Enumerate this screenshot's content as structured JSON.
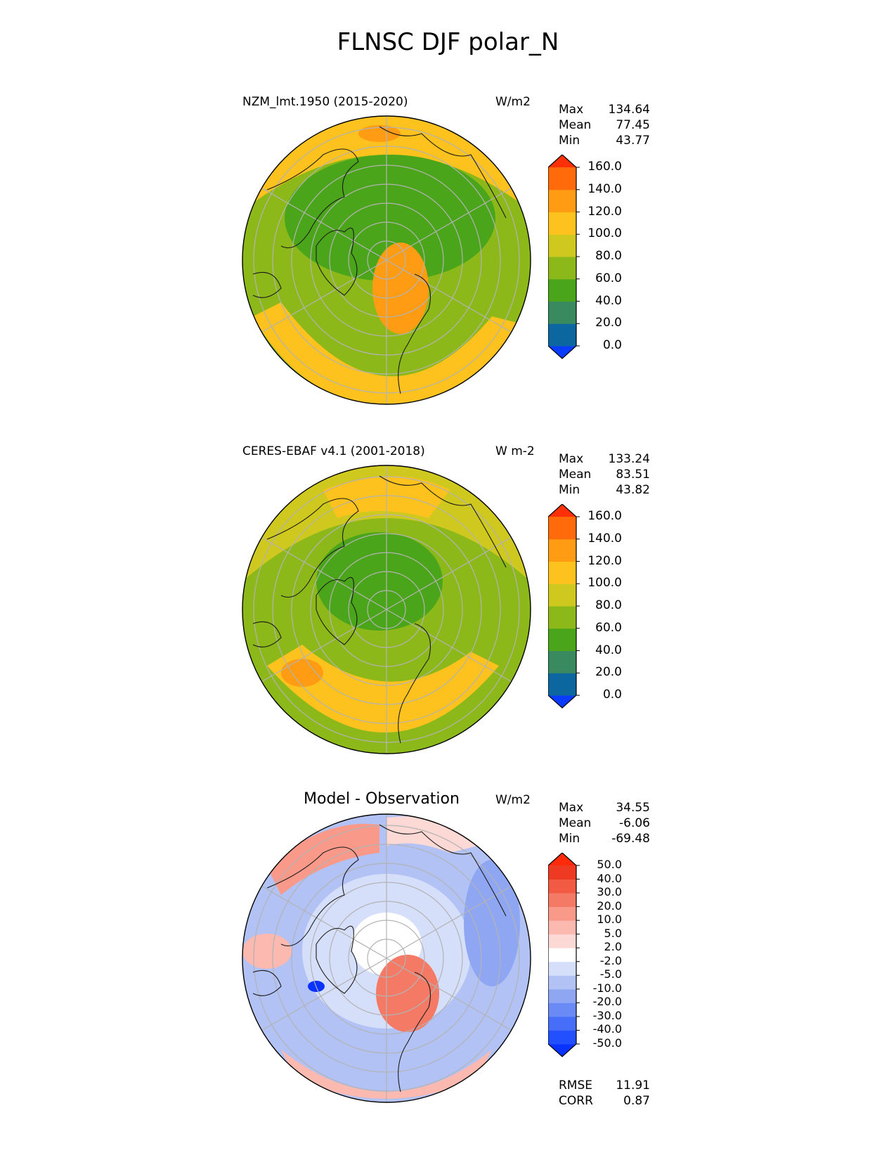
{
  "title": "FLNSC DJF polar_N",
  "panels": [
    {
      "id": "model",
      "title": "NZM_lmt.1950 (2015-2020)",
      "units": "W/m2",
      "stats": [
        {
          "label": "Max",
          "value": "134.64"
        },
        {
          "label": "Mean",
          "value": "77.45"
        },
        {
          "label": "Min",
          "value": "43.77"
        }
      ],
      "colorbar": {
        "ticks": [
          "160.0",
          "140.0",
          "120.0",
          "100.0",
          "80.0",
          "60.0",
          "40.0",
          "20.0",
          "0.0"
        ],
        "colors_bottom_to_top": [
          "#0a3cff",
          "#0c66a0",
          "#3a8a60",
          "#4ba51a",
          "#8cb81a",
          "#cfc81f",
          "#fdc21e",
          "#ff9c13",
          "#ff6a0a",
          "#ff2f08"
        ]
      }
    },
    {
      "id": "obs",
      "title": "CERES-EBAF v4.1 (2001-2018)",
      "units": "W m-2",
      "stats": [
        {
          "label": "Max",
          "value": "133.24"
        },
        {
          "label": "Mean",
          "value": "83.51"
        },
        {
          "label": "Min",
          "value": "43.82"
        }
      ],
      "colorbar": {
        "ticks": [
          "160.0",
          "140.0",
          "120.0",
          "100.0",
          "80.0",
          "60.0",
          "40.0",
          "20.0",
          "0.0"
        ],
        "colors_bottom_to_top": [
          "#0a3cff",
          "#0c66a0",
          "#3a8a60",
          "#4ba51a",
          "#8cb81a",
          "#cfc81f",
          "#fdc21e",
          "#ff9c13",
          "#ff6a0a",
          "#ff2f08"
        ]
      }
    },
    {
      "id": "diff",
      "title": "Model - Observation",
      "units": "W/m2",
      "stats": [
        {
          "label": "Max",
          "value": "34.55"
        },
        {
          "label": "Mean",
          "value": "-6.06"
        },
        {
          "label": "Min",
          "value": "-69.48"
        }
      ],
      "colorbar": {
        "ticks": [
          "50.0",
          "40.0",
          "30.0",
          "20.0",
          "10.0",
          "5.0",
          "2.0",
          "-2.0",
          "-5.0",
          "-10.0",
          "-20.0",
          "-30.0",
          "-40.0",
          "-50.0"
        ],
        "colors_bottom_to_top": [
          "#0a32ff",
          "#2250ff",
          "#466ef8",
          "#6a8af5",
          "#8fa6f2",
          "#b2c2f5",
          "#d6dffa",
          "#ffffff",
          "#fcd9d4",
          "#fbb9b0",
          "#f8998a",
          "#f57a66",
          "#f25a44",
          "#ee3a22",
          "#ff2a0a"
        ]
      },
      "bottom_stats": [
        {
          "label": "RMSE",
          "value": "11.91"
        },
        {
          "label": "CORR",
          "value": "0.87"
        }
      ]
    }
  ]
}
